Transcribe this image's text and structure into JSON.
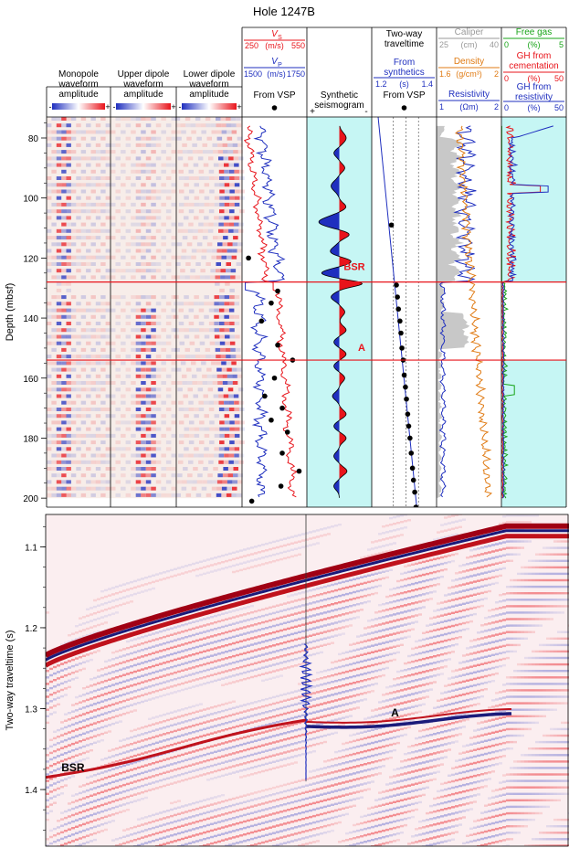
{
  "title": "Hole 1247B",
  "chart_data": [
    {
      "type": "well-log",
      "title": "Hole 1247B",
      "ylabel": "Depth (mbsf)",
      "ylim": [
        73,
        203
      ],
      "yticks": [
        80,
        100,
        120,
        140,
        160,
        180,
        200
      ],
      "markers": [
        {
          "label": "BSR",
          "depth": 128,
          "color": "#e8141b"
        },
        {
          "label": "A",
          "depth": 154,
          "color": "#e8141b"
        }
      ],
      "tracks": [
        {
          "title": [
            "Monopole",
            "waveform",
            "amplitude"
          ],
          "scale_min": "-",
          "scale_max": "+",
          "kind": "waveform"
        },
        {
          "title": [
            "Upper dipole",
            "waveform",
            "amplitude"
          ],
          "scale_min": "-",
          "scale_max": "+",
          "kind": "waveform"
        },
        {
          "title": [
            "Lower dipole",
            "waveform",
            "amplitude"
          ],
          "scale_min": "-",
          "scale_max": "+",
          "kind": "waveform"
        },
        {
          "kind": "velocity",
          "vs": {
            "label": "V",
            "sub": "S",
            "min": "250",
            "unit": "(m/s)",
            "max": "550",
            "color": "#e8141b"
          },
          "vp": {
            "label": "V",
            "sub": "P",
            "min": "1500",
            "unit": "(m/s)",
            "max": "1750",
            "color": "#1f2fbf"
          },
          "vsp_label": "From VSP",
          "vsp_points": [
            [
              120,
              0.1
            ],
            [
              131,
              0.55
            ],
            [
              135,
              0.45
            ],
            [
              141,
              0.3
            ],
            [
              149,
              0.55
            ],
            [
              154,
              0.78
            ],
            [
              160,
              0.5
            ],
            [
              166,
              0.35
            ],
            [
              170,
              0.62
            ],
            [
              174,
              0.45
            ],
            [
              178,
              0.7
            ],
            [
              185,
              0.62
            ],
            [
              191,
              0.88
            ],
            [
              196,
              0.6
            ],
            [
              201,
              0.15
            ]
          ]
        },
        {
          "title": [
            "Synthetic",
            "seismogram"
          ],
          "left": "+",
          "right": "-",
          "kind": "seismogram"
        },
        {
          "title": [
            "Two-way",
            "traveltime"
          ],
          "synth_label": [
            "From",
            "synthetics"
          ],
          "min": "1.2",
          "unit": "(s)",
          "max": "1.4",
          "vsp_label": "From VSP",
          "vsp_points": [
            [
              109,
              1.242
            ],
            [
              129,
              1.262
            ],
            [
              133,
              1.266
            ],
            [
              137,
              1.27
            ],
            [
              141,
              1.276
            ],
            [
              145,
              1.28
            ],
            [
              150,
              1.284
            ],
            [
              154,
              1.289
            ],
            [
              159,
              1.293
            ],
            [
              163,
              1.298
            ],
            [
              167,
              1.302
            ],
            [
              172,
              1.307
            ],
            [
              176,
              1.311
            ],
            [
              180,
              1.316
            ],
            [
              185,
              1.321
            ],
            [
              190,
              1.326
            ],
            [
              194,
              1.33
            ],
            [
              198,
              1.335
            ],
            [
              203,
              1.34
            ]
          ]
        },
        {
          "kind": "caliper-density",
          "caliper": {
            "label": "Caliper",
            "min": "25",
            "unit": "(cm)",
            "max": "40",
            "color": "#9a9a9a"
          },
          "density": {
            "label": "Density",
            "min": "1.6",
            "unit": "(g/cm³)",
            "max": "2",
            "color": "#e07b14"
          },
          "resistivity": {
            "label": "Resistivity",
            "min": "1",
            "unit": "(Ωm)",
            "max": "2",
            "color": "#1f2fbf"
          }
        },
        {
          "kind": "gas-hydrate",
          "free_gas": {
            "label": "Free gas",
            "min": "0",
            "unit": "(%)",
            "max": "5",
            "color": "#18a418"
          },
          "gh_cement": {
            "label": [
              "GH from",
              "cementation"
            ],
            "min": "0",
            "unit": "(%)",
            "max": "50",
            "color": "#e8141b"
          },
          "gh_resist": {
            "label": [
              "GH from",
              "resistivity"
            ],
            "min": "0",
            "unit": "(%)",
            "max": "50",
            "color": "#1f2fbf"
          }
        }
      ]
    },
    {
      "type": "seismic-section",
      "ylabel": "Two-way traveltime (s)",
      "ylim": [
        1.06,
        1.47
      ],
      "yticks": [
        1.1,
        1.2,
        1.3,
        1.4
      ],
      "labels": [
        {
          "text": "BSR",
          "t": 1.373,
          "pos": 0.03
        },
        {
          "text": "A",
          "t": 1.305,
          "pos": 0.66
        }
      ]
    }
  ]
}
